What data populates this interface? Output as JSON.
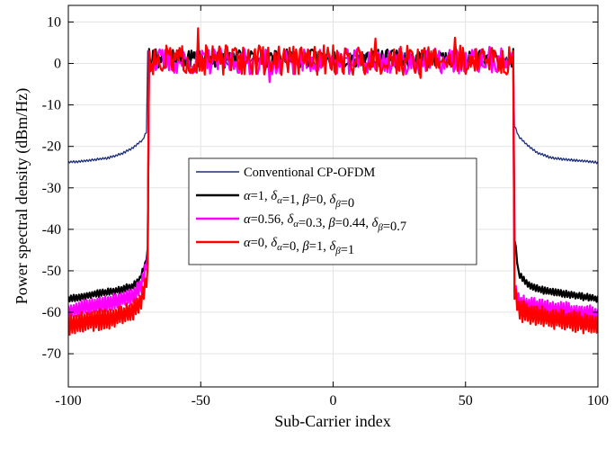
{
  "chart_data": {
    "type": "line",
    "title": "",
    "xlabel": "Sub-Carrier index",
    "ylabel": "Power spectral density (dBm/Hz)",
    "xlim": [
      -100,
      100
    ],
    "ylim": [
      -78,
      14
    ],
    "xticks": [
      -100,
      -50,
      0,
      50,
      100
    ],
    "yticks": [
      10,
      0,
      -10,
      -20,
      -30,
      -40,
      -50,
      -60,
      -70
    ],
    "grid": true,
    "legend_position": "center",
    "series": [
      {
        "name": "Conventional CP-OFDM",
        "legend": {
          "parts": [
            {
              "t": "Conventional CP-OFDM"
            }
          ]
        },
        "color": "#1c2e7a",
        "width": 1.3,
        "inband": 1.2,
        "inband_amp": 1.6,
        "edge_in": 3.0,
        "skirt_left": [
          [
            -100,
            -23.8
          ],
          [
            -95,
            -23.6
          ],
          [
            -90,
            -23.2
          ],
          [
            -85,
            -22.8
          ],
          [
            -80,
            -21.8
          ],
          [
            -76,
            -20.5
          ],
          [
            -72,
            -18.5
          ],
          [
            -70.5,
            -16.5
          ]
        ],
        "skirt_right": [
          [
            68.5,
            -15.0
          ],
          [
            70,
            -17.5
          ],
          [
            73,
            -19.5
          ],
          [
            77,
            -21.5
          ],
          [
            82,
            -22.7
          ],
          [
            87,
            -23.1
          ],
          [
            92,
            -23.4
          ],
          [
            96,
            -23.6
          ],
          [
            100,
            -23.9
          ]
        ],
        "ripple": 0.3,
        "seed": 11
      },
      {
        "name": "α=1, δα=1, β=0, δβ=0",
        "legend": {
          "parts": [
            {
              "t": "α",
              "it": true
            },
            {
              "t": "=1, "
            },
            {
              "t": "δ",
              "it": true
            },
            {
              "t": "α",
              "sub": true,
              "it": true
            },
            {
              "t": "=1, "
            },
            {
              "t": "β",
              "it": true
            },
            {
              "t": "=0, "
            },
            {
              "t": "δ",
              "it": true
            },
            {
              "t": "β",
              "sub": true,
              "it": true
            },
            {
              "t": "=0"
            }
          ]
        },
        "color": "#000000",
        "width": 2.2,
        "inband": 1.2,
        "inband_amp": 2.2,
        "edge_in": 3.5,
        "skirt_left": [
          [
            -100,
            -56.8
          ],
          [
            -90,
            -55.6
          ],
          [
            -82,
            -54.8
          ],
          [
            -76,
            -53.8
          ],
          [
            -73,
            -52.0
          ],
          [
            -71,
            -48.5
          ],
          [
            -70,
            -45.0
          ]
        ],
        "skirt_right": [
          [
            68.5,
            -42.0
          ],
          [
            70,
            -50.5
          ],
          [
            73,
            -53.0
          ],
          [
            78,
            -54.5
          ],
          [
            85,
            -55.3
          ],
          [
            92,
            -56.0
          ],
          [
            100,
            -56.8
          ]
        ],
        "ripple": 0.9,
        "seed": 23
      },
      {
        "name": "α=0.56, δα=0.3, β=0.44, δβ=0.7",
        "legend": {
          "parts": [
            {
              "t": "α",
              "it": true
            },
            {
              "t": "=0.56, "
            },
            {
              "t": "δ",
              "it": true
            },
            {
              "t": "α",
              "sub": true,
              "it": true
            },
            {
              "t": "=0.3, "
            },
            {
              "t": "β",
              "it": true
            },
            {
              "t": "=0.44, "
            },
            {
              "t": "δ",
              "it": true
            },
            {
              "t": "β",
              "sub": true,
              "it": true
            },
            {
              "t": "=0.7"
            }
          ]
        },
        "color": "#ff00ff",
        "width": 2.2,
        "inband": 0.5,
        "inband_amp": 3.2,
        "edge_in": 3.0,
        "skirt_left": [
          [
            -100,
            -59.8
          ],
          [
            -90,
            -58.2
          ],
          [
            -82,
            -57.2
          ],
          [
            -76,
            -56.2
          ],
          [
            -73,
            -54.0
          ],
          [
            -71,
            -50.0
          ],
          [
            -70,
            -46.5
          ]
        ],
        "skirt_right": [
          [
            68.5,
            -53.5
          ],
          [
            70,
            -57.5
          ],
          [
            74,
            -58.3
          ],
          [
            80,
            -59.0
          ],
          [
            87,
            -59.5
          ],
          [
            94,
            -60.2
          ],
          [
            100,
            -60.6
          ]
        ],
        "ripple": 2.1,
        "seed": 37
      },
      {
        "name": "α=0, δα=0, β=1, δβ=1",
        "legend": {
          "parts": [
            {
              "t": "α",
              "it": true
            },
            {
              "t": "=0, "
            },
            {
              "t": "δ",
              "it": true
            },
            {
              "t": "α",
              "sub": true,
              "it": true
            },
            {
              "t": "=0, "
            },
            {
              "t": "β",
              "it": true
            },
            {
              "t": "=1, "
            },
            {
              "t": "δ",
              "it": true
            },
            {
              "t": "β",
              "sub": true,
              "it": true
            },
            {
              "t": "=1"
            }
          ]
        },
        "color": "#ff0000",
        "width": 2.2,
        "inband": 0.8,
        "inband_amp": 3.6,
        "edge_in": 3.0,
        "skirt_left": [
          [
            -100,
            -63.0
          ],
          [
            -90,
            -62.0
          ],
          [
            -82,
            -61.2
          ],
          [
            -76,
            -60.0
          ],
          [
            -73,
            -58.0
          ],
          [
            -71,
            -54.0
          ],
          [
            -70,
            -50.0
          ]
        ],
        "skirt_right": [
          [
            68.5,
            -55.0
          ],
          [
            70,
            -59.5
          ],
          [
            74,
            -60.5
          ],
          [
            80,
            -61.2
          ],
          [
            87,
            -62.0
          ],
          [
            94,
            -62.5
          ],
          [
            100,
            -63.0
          ]
        ],
        "ripple": 2.6,
        "seed": 51
      }
    ]
  }
}
